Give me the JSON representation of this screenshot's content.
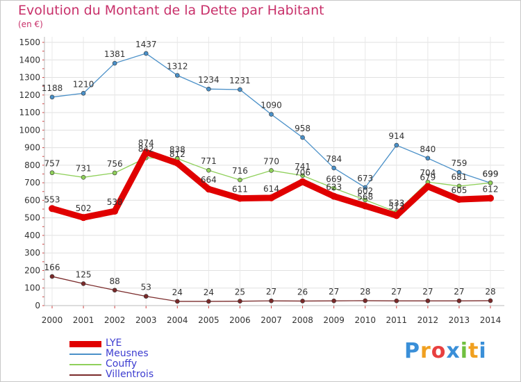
{
  "chart_data": {
    "type": "line",
    "title": "Evolution du Montant de la Dette par Habitant",
    "subtitle": "(en €)",
    "x": [
      "2000",
      "2001",
      "2002",
      "2003",
      "2004",
      "2005",
      "2006",
      "2007",
      "2008",
      "2009",
      "2010",
      "2011",
      "2012",
      "2013",
      "2014"
    ],
    "ylim": [
      0,
      1500
    ],
    "yticks": [
      "0",
      "100",
      "200",
      "300",
      "400",
      "500",
      "600",
      "700",
      "800",
      "900",
      "1000",
      "1100",
      "1200",
      "1300",
      "1400",
      "1500"
    ],
    "grid": true,
    "legend_position": "bottom-left",
    "series": [
      {
        "name": "LYE",
        "color": "#e00000",
        "values": [
          553,
          502,
          538,
          874,
          812,
          664,
          611,
          614,
          706,
          623,
          568,
          513,
          679,
          605,
          612
        ]
      },
      {
        "name": "Meusnes",
        "color": "#4a90c8",
        "values": [
          1188,
          1210,
          1381,
          1437,
          1312,
          1234,
          1231,
          1090,
          958,
          784,
          673,
          914,
          840,
          759,
          699
        ]
      },
      {
        "name": "Couffy",
        "color": "#8fd05a",
        "values": [
          757,
          731,
          756,
          842,
          838,
          771,
          716,
          770,
          741,
          669,
          602,
          533,
          704,
          681,
          699
        ]
      },
      {
        "name": "Villentrois",
        "color": "#7a2a2a",
        "values": [
          166,
          125,
          88,
          53,
          24,
          24,
          25,
          27,
          26,
          27,
          28,
          27,
          27,
          27,
          28
        ]
      }
    ]
  },
  "logo": {
    "letters": [
      {
        "ch": "P",
        "color": "#3a8fd8"
      },
      {
        "ch": "r",
        "color": "#f0a020"
      },
      {
        "ch": "o",
        "color": "#e84040"
      },
      {
        "ch": "x",
        "color": "#3a8fd8"
      },
      {
        "ch": "i",
        "color": "#70c040"
      },
      {
        "ch": "t",
        "color": "#f0a020"
      },
      {
        "ch": "i",
        "color": "#3a8fd8"
      }
    ]
  }
}
